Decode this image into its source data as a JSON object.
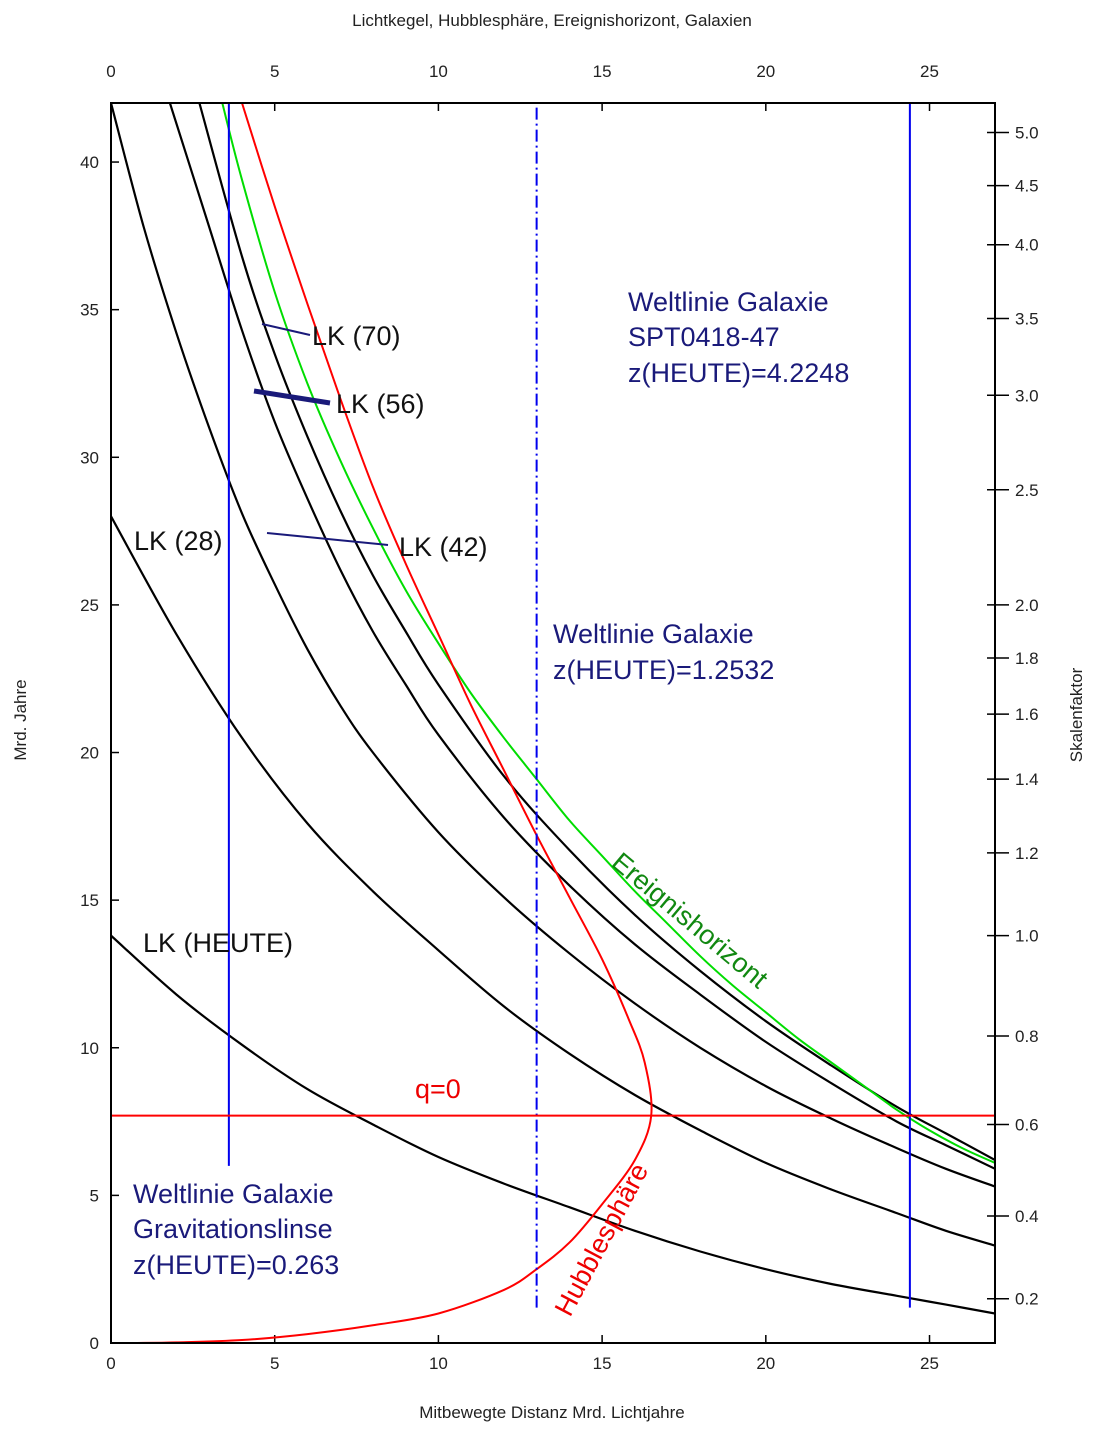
{
  "chart_data": {
    "type": "line",
    "title": "Lichtkegel, Hubblesphäre, Ereignishorizont, Galaxien",
    "xlabel": "Mitbewegte Distanz Mrd. Lichtjahre",
    "ylabel": "Mrd. Jahre",
    "y2label": "Skalenfaktor",
    "xlim": [
      0,
      27
    ],
    "ylim": [
      0,
      42
    ],
    "x_ticks": [
      0,
      5,
      10,
      15,
      20,
      25
    ],
    "y_ticks": [
      0,
      5,
      10,
      15,
      20,
      25,
      30,
      35,
      40
    ],
    "y2_ticks": [
      {
        "label": "0.2",
        "t": 1.5
      },
      {
        "label": "0.4",
        "t": 4.3
      },
      {
        "label": "0.6",
        "t": 7.4
      },
      {
        "label": "0.8",
        "t": 10.4
      },
      {
        "label": "1.0",
        "t": 13.8
      },
      {
        "label": "1.2",
        "t": 16.6
      },
      {
        "label": "1.4",
        "t": 19.1
      },
      {
        "label": "1.6",
        "t": 21.3
      },
      {
        "label": "1.8",
        "t": 23.2
      },
      {
        "label": "2.0",
        "t": 25.0
      },
      {
        "label": "2.5",
        "t": 28.9
      },
      {
        "label": "3.0",
        "t": 32.1
      },
      {
        "label": "3.5",
        "t": 34.7
      },
      {
        "label": "4.0",
        "t": 37.2
      },
      {
        "label": "4.5",
        "t": 39.2
      },
      {
        "label": "5.0",
        "t": 41.0
      }
    ],
    "series": [
      {
        "kind": "lightcone",
        "color": "#000000",
        "points": [
          [
            0,
            13.8
          ],
          [
            2,
            11.8
          ],
          [
            4,
            10.1
          ],
          [
            6,
            8.6
          ],
          [
            8,
            7.4
          ],
          [
            10,
            6.3
          ],
          [
            12,
            5.4
          ],
          [
            14,
            4.6
          ],
          [
            16,
            3.8
          ],
          [
            18,
            3.1
          ],
          [
            20,
            2.5
          ],
          [
            22,
            2.0
          ],
          [
            24,
            1.6
          ],
          [
            25.5,
            1.3
          ],
          [
            27,
            1.0
          ]
        ]
      },
      {
        "kind": "lightcone",
        "color": "#000000",
        "points": [
          [
            0,
            28
          ],
          [
            2,
            24
          ],
          [
            4,
            20.5
          ],
          [
            6,
            17.6
          ],
          [
            8,
            15.3
          ],
          [
            10,
            13.3
          ],
          [
            12,
            11.4
          ],
          [
            14,
            9.8
          ],
          [
            16,
            8.4
          ],
          [
            18,
            7.2
          ],
          [
            20,
            6.1
          ],
          [
            22,
            5.2
          ],
          [
            24,
            4.4
          ],
          [
            25.5,
            3.8
          ],
          [
            27,
            3.3
          ]
        ]
      },
      {
        "kind": "lightcone",
        "color": "#000000",
        "points": [
          [
            0,
            42
          ],
          [
            1,
            37.8
          ],
          [
            2,
            34.2
          ],
          [
            3,
            31
          ],
          [
            4,
            28.1
          ],
          [
            5,
            25.7
          ],
          [
            6,
            23.5
          ],
          [
            7,
            21.6
          ],
          [
            8,
            20
          ],
          [
            10,
            17.3
          ],
          [
            12,
            15.1
          ],
          [
            14,
            13.2
          ],
          [
            16,
            11.5
          ],
          [
            18,
            10
          ],
          [
            20,
            8.7
          ],
          [
            22,
            7.6
          ],
          [
            24,
            6.6
          ],
          [
            25.5,
            5.9
          ],
          [
            27,
            5.3
          ]
        ]
      },
      {
        "kind": "lightcone",
        "color": "#000000",
        "points": [
          [
            1.8,
            42
          ],
          [
            3,
            37.8
          ],
          [
            4,
            34.3
          ],
          [
            5,
            31.2
          ],
          [
            6,
            28.6
          ],
          [
            7,
            26.2
          ],
          [
            8,
            24.1
          ],
          [
            9,
            22.3
          ],
          [
            10,
            20.6
          ],
          [
            12,
            17.8
          ],
          [
            14,
            15.5
          ],
          [
            16,
            13.5
          ],
          [
            18,
            11.8
          ],
          [
            20,
            10.2
          ],
          [
            22,
            8.8
          ],
          [
            24,
            7.5
          ],
          [
            25.5,
            6.7
          ],
          [
            27,
            5.9
          ]
        ]
      },
      {
        "kind": "lightcone",
        "color": "#000000",
        "points": [
          [
            2.7,
            42
          ],
          [
            4,
            36.8
          ],
          [
            5,
            33.5
          ],
          [
            6,
            30.7
          ],
          [
            7,
            28.2
          ],
          [
            8,
            26
          ],
          [
            9,
            24.1
          ],
          [
            10,
            22.3
          ],
          [
            12,
            19.2
          ],
          [
            14,
            16.7
          ],
          [
            16,
            14.5
          ],
          [
            18,
            12.6
          ],
          [
            20,
            10.9
          ],
          [
            22,
            9.4
          ],
          [
            24,
            8.0
          ],
          [
            25.5,
            7.1
          ],
          [
            27,
            6.2
          ]
        ]
      },
      {
        "kind": "event_horizon",
        "color": "#00dd00",
        "label": "Ereignishorizont",
        "points": [
          [
            3.4,
            42
          ],
          [
            4,
            39.4
          ],
          [
            5,
            35.6
          ],
          [
            6,
            32.5
          ],
          [
            7,
            29.9
          ],
          [
            8,
            27.6
          ],
          [
            9,
            25.5
          ],
          [
            10,
            23.7
          ],
          [
            11,
            22
          ],
          [
            12,
            20.5
          ],
          [
            13,
            19.1
          ],
          [
            14,
            17.7
          ],
          [
            15,
            16.5
          ],
          [
            16,
            15.3
          ],
          [
            17,
            14.2
          ],
          [
            18,
            13.1
          ],
          [
            19,
            12.1
          ],
          [
            20,
            11.2
          ],
          [
            21,
            10.3
          ],
          [
            22,
            9.5
          ],
          [
            23,
            8.7
          ],
          [
            24,
            7.9
          ],
          [
            25,
            7.2
          ],
          [
            26,
            6.6
          ],
          [
            27,
            6.1
          ]
        ]
      },
      {
        "kind": "hubble_sphere",
        "color": "#ff0000",
        "label": "Hubblesphäre",
        "points": [
          [
            0.8,
            0
          ],
          [
            2,
            0.02
          ],
          [
            4,
            0.1
          ],
          [
            6,
            0.3
          ],
          [
            8,
            0.6
          ],
          [
            10,
            1.0
          ],
          [
            12,
            1.8
          ],
          [
            13,
            2.5
          ],
          [
            14,
            3.4
          ],
          [
            15,
            4.7
          ],
          [
            16,
            6.2
          ],
          [
            16.5,
            7.7
          ],
          [
            16.3,
            9.5
          ],
          [
            15.8,
            11
          ],
          [
            15,
            13
          ],
          [
            14,
            15.1
          ],
          [
            13,
            17.2
          ],
          [
            12,
            19.4
          ],
          [
            11,
            21.6
          ],
          [
            10,
            24
          ],
          [
            9,
            26.4
          ],
          [
            8,
            29
          ],
          [
            7,
            32
          ],
          [
            6,
            35.2
          ],
          [
            5,
            38.5
          ],
          [
            4,
            42
          ]
        ]
      },
      {
        "kind": "worldline",
        "color": "#0000ee",
        "x": 3.6,
        "y_range": [
          6,
          42
        ],
        "style": "solid"
      },
      {
        "kind": "worldline",
        "color": "#0000ee",
        "x": 13.0,
        "y_range": [
          1.2,
          42
        ],
        "style": "dashdot"
      },
      {
        "kind": "worldline",
        "color": "#0000ee",
        "x": 24.4,
        "y_range": [
          1.2,
          42
        ],
        "style": "solid"
      },
      {
        "kind": "q0_line",
        "color": "#ff0000",
        "y": 7.7,
        "label": "q=0"
      }
    ],
    "annotations": {
      "lk70": "LK (70)",
      "lk56": "LK (56)",
      "lk42": "LK (42)",
      "lk28": "LK (28)",
      "lk_heute": "LK (HEUTE)",
      "spt_line1": "Weltlinie Galaxie",
      "spt_line2": "SPT0418-47",
      "spt_line3": "z(HEUTE)=4.2248",
      "mid_line1": "Weltlinie Galaxie",
      "mid_line2": "z(HEUTE)=1.2532",
      "lens_line1": "Weltlinie Galaxie",
      "lens_line2": "Gravitationslinse",
      "lens_line3": "z(HEUTE)=0.263",
      "q0": "q=0",
      "ereignishorizont": "Ereignishorizont",
      "hubblesphaere": "Hubblesphäre"
    },
    "grid": false,
    "legend": "none"
  }
}
